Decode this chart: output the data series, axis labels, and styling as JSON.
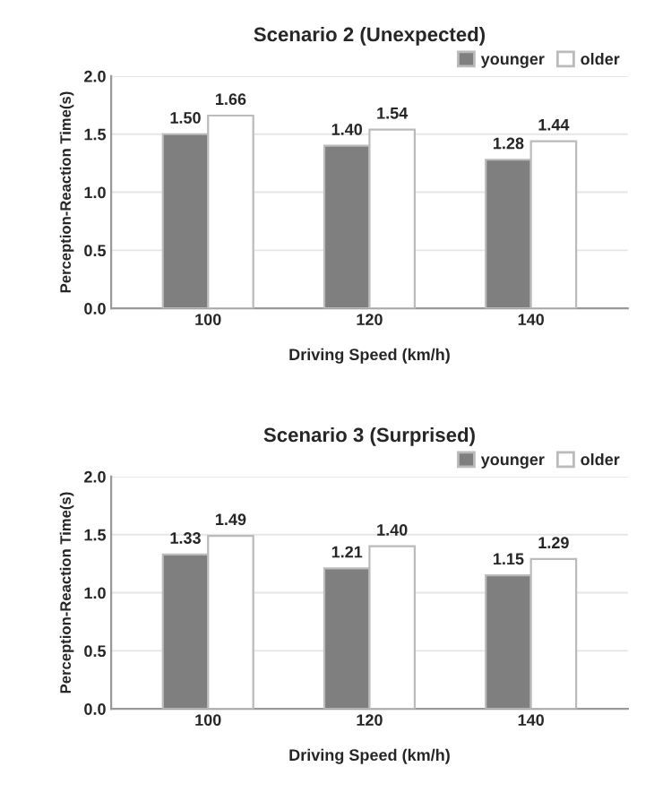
{
  "chart_data": [
    {
      "type": "bar",
      "title": "Scenario 2 (Unexpected)",
      "xlabel": "Driving Speed (km/h)",
      "ylabel": "Perception-Reaction Time(s)",
      "categories": [
        "100",
        "120",
        "140"
      ],
      "series": [
        {
          "name": "younger",
          "color": "#7f7f7f",
          "values": [
            1.5,
            1.4,
            1.28
          ],
          "value_labels": [
            "1.50",
            "1.40",
            "1.28"
          ]
        },
        {
          "name": "older",
          "color": "#ffffff",
          "values": [
            1.66,
            1.54,
            1.44
          ],
          "value_labels": [
            "1.66",
            "1.54",
            "1.44"
          ]
        }
      ],
      "ylim": [
        0,
        2.0
      ],
      "yticks": [
        {
          "value": 0,
          "label": "0.0"
        },
        {
          "value": 0.5,
          "label": "0.5"
        },
        {
          "value": 1.0,
          "label": "1.0"
        },
        {
          "value": 1.5,
          "label": "1.5"
        },
        {
          "value": 2.0,
          "label": "2.0"
        }
      ],
      "grid": "y",
      "legend": "top right"
    },
    {
      "type": "bar",
      "title": "Scenario 3 (Surprised)",
      "xlabel": "Driving Speed (km/h)",
      "ylabel": "Perception-Reaction Time(s)",
      "categories": [
        "100",
        "120",
        "140"
      ],
      "series": [
        {
          "name": "younger",
          "color": "#7f7f7f",
          "values": [
            1.33,
            1.21,
            1.15
          ],
          "value_labels": [
            "1.33",
            "1.21",
            "1.15"
          ]
        },
        {
          "name": "older",
          "color": "#ffffff",
          "values": [
            1.49,
            1.4,
            1.29
          ],
          "value_labels": [
            "1.49",
            "1.40",
            "1.29"
          ]
        }
      ],
      "ylim": [
        0,
        2.0
      ],
      "yticks": [
        {
          "value": 0,
          "label": "0.0"
        },
        {
          "value": 0.5,
          "label": "0.5"
        },
        {
          "value": 1.0,
          "label": "1.0"
        },
        {
          "value": 1.5,
          "label": "1.5"
        },
        {
          "value": 2.0,
          "label": "2.0"
        }
      ],
      "grid": "y",
      "legend": "top right"
    }
  ]
}
